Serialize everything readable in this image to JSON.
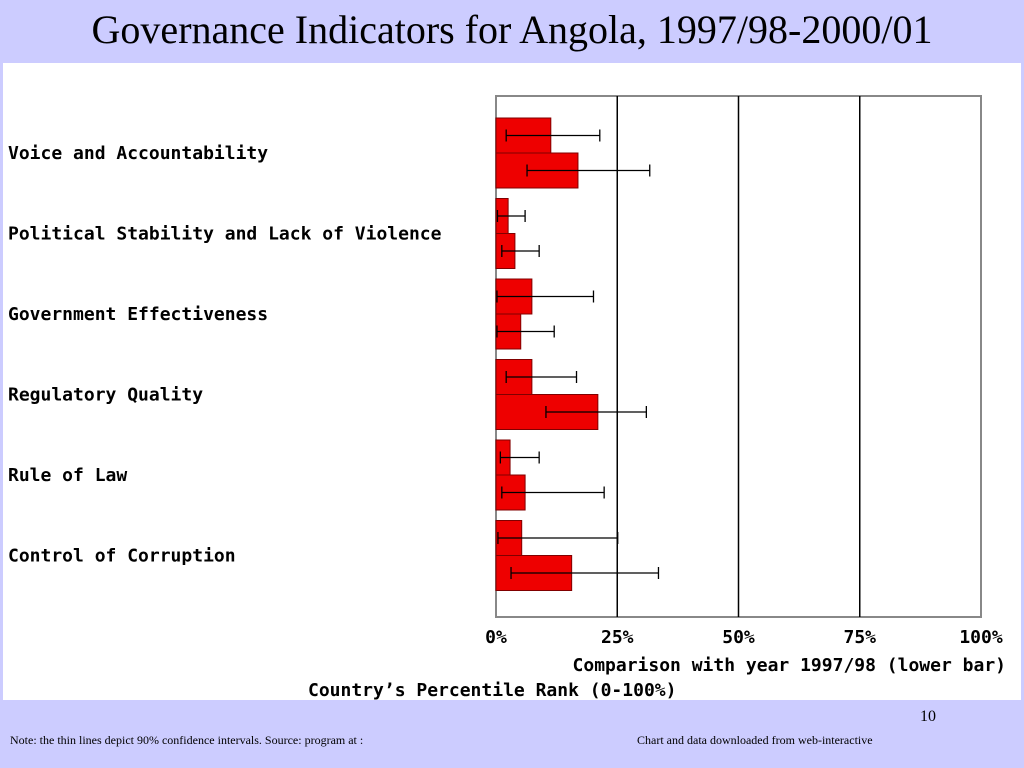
{
  "slide": {
    "title": "Governance Indicators for Angola, 1997/98-2000/01",
    "number": "10",
    "note": "Note: the thin lines depict 90% confidence intervals. Source: program at :",
    "download_note": "Chart and data downloaded from web-interactive"
  },
  "colors": {
    "background": "#ccccff",
    "bar": "#ee0000",
    "bar_border": "#800000",
    "gridline": "#000000",
    "frame": "#888888"
  },
  "chart_data": {
    "type": "bar",
    "orientation": "horizontal",
    "categories": [
      "Voice and Accountability",
      "Political Stability and Lack of Violence",
      "Government Effectiveness",
      "Regulatory Quality",
      "Rule of Law",
      "Control of Corruption"
    ],
    "series": [
      {
        "values": [
          11.3,
          2.5,
          7.4,
          7.4,
          2.9,
          5.3
        ],
        "ci_low": [
          2.1,
          0.3,
          0.2,
          2.1,
          0.9,
          0.4
        ],
        "ci_high": [
          21.4,
          6.0,
          20.1,
          16.6,
          8.9,
          25.1
        ]
      },
      {
        "values": [
          16.9,
          3.9,
          5.1,
          21.0,
          6.0,
          15.6
        ],
        "ci_low": [
          6.4,
          1.2,
          0.2,
          10.3,
          1.2,
          3.1
        ],
        "ci_high": [
          31.7,
          8.9,
          12.0,
          31.0,
          22.3,
          33.5
        ]
      }
    ],
    "xlim": [
      0,
      100
    ],
    "xticks": [
      "0%",
      "25%",
      "50%",
      "75%",
      "100%"
    ],
    "xtick_values": [
      0,
      25,
      50,
      75,
      100
    ],
    "xlabel_1": "Comparison with year 1997/98 (lower bar)",
    "xlabel_2": "Country’s Percentile Rank (0-100%)",
    "grid": true
  }
}
